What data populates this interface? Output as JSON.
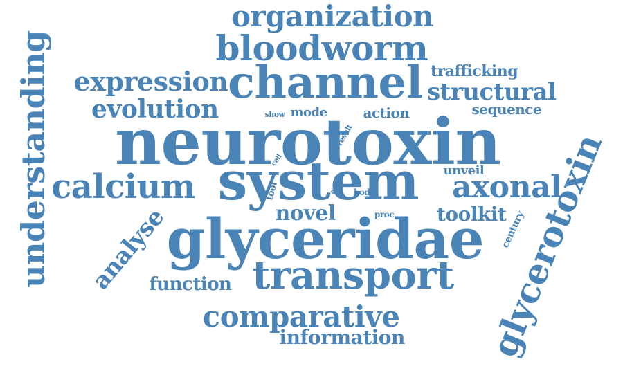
{
  "color": "#4a84b6",
  "words": [
    "neurotoxin",
    "system",
    "glyceridae",
    "channel",
    "transport",
    "bloodworm",
    "organization",
    "understanding",
    "glycerotoxin",
    "calcium",
    "comparative",
    "axonal",
    "expression",
    "evolution",
    "structural",
    "analyse",
    "function",
    "novel",
    "toolkit",
    "information",
    "trafficking",
    "sequence",
    "unveil",
    "action",
    "mode",
    "century",
    "show",
    "cell",
    "result",
    "axon",
    "body",
    "proc",
    "tool"
  ]
}
